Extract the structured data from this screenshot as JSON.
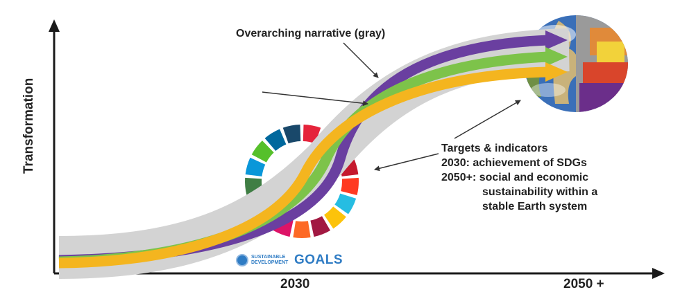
{
  "axes": {
    "y_label": "Transformation",
    "x_ticks": [
      "2030",
      "2050 +"
    ]
  },
  "annotations": {
    "narrative": "Overarching narrative (gray)",
    "targets_lines": [
      "Targets & indicators",
      "2030: achievement of SDGs",
      "2050+: social and economic",
      "sustainability within a",
      "stable Earth system"
    ]
  },
  "logo": {
    "small_text": "SUSTAINABLE DEVELOPMENT",
    "big_text": "GOALS"
  },
  "colors": {
    "gray_band": "#d3d3d3",
    "purple_arrow": "#6a3fa0",
    "green_arrow": "#7dc34a",
    "yellow_arrow": "#f4b51f",
    "axis": "#1a1a1a",
    "sdg_wheel": [
      "#e5243b",
      "#dda63a",
      "#4c9f38",
      "#c5192d",
      "#ff3a21",
      "#26bde2",
      "#fcc30b",
      "#a21942",
      "#fd6925",
      "#dd1367",
      "#fd9d24",
      "#bf8b2e",
      "#3f7e44",
      "#0a97d9",
      "#56c02b",
      "#00689d",
      "#19486a"
    ]
  },
  "icons": [
    "sdg-color-wheel-icon",
    "earth-globe-icon",
    "un-emblem-icon"
  ]
}
